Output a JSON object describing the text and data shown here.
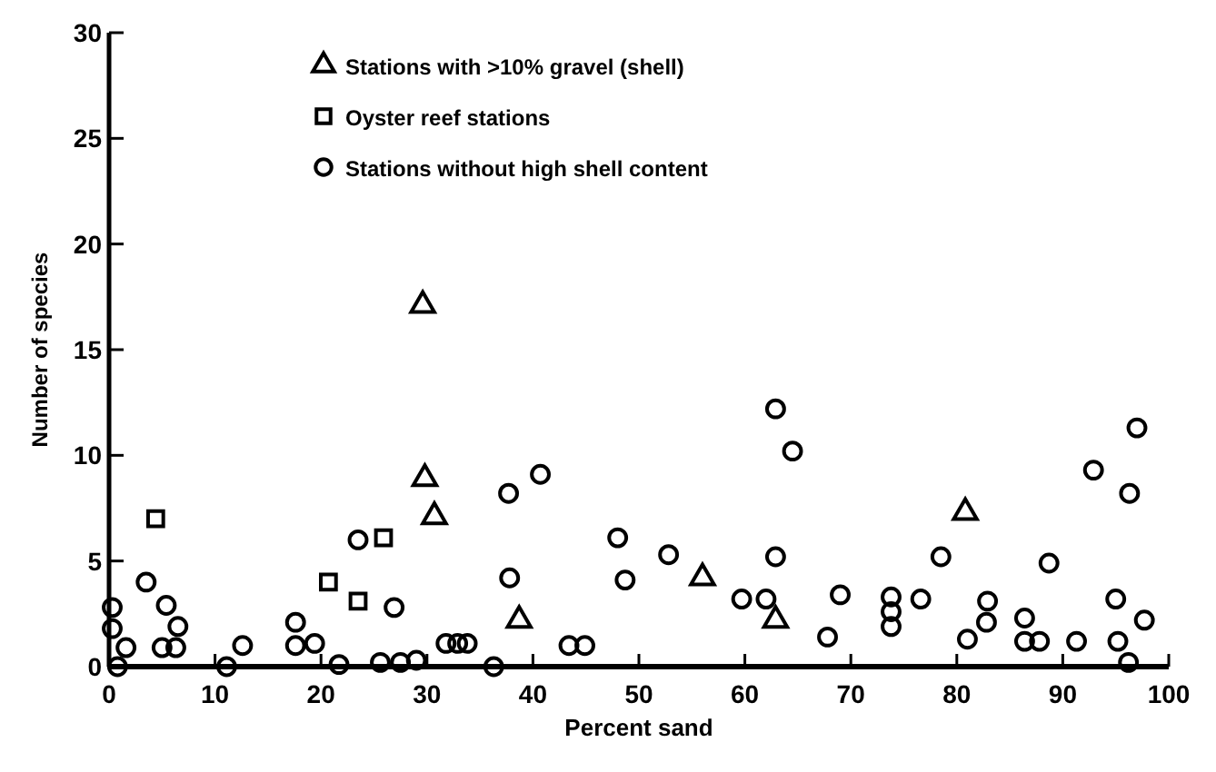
{
  "chart_data": {
    "type": "scatter",
    "xlabel": "Percent sand",
    "ylabel": "Number of species",
    "xlim": [
      0,
      100
    ],
    "ylim": [
      0,
      30
    ],
    "xticks": [
      0,
      10,
      20,
      30,
      40,
      50,
      60,
      70,
      80,
      90,
      100
    ],
    "yticks": [
      0,
      5,
      10,
      15,
      20,
      25,
      30
    ],
    "grid": false,
    "legend": "top",
    "series": [
      {
        "name": "Stations with >10% gravel (shell)",
        "color": "#000000",
        "marker": "triangle",
        "x": [
          29.6,
          29.8,
          30.7,
          38.7,
          56,
          62.9,
          80.8
        ],
        "values": [
          17.1,
          8.9,
          7.1,
          2.2,
          4.2,
          2.2,
          7.3
        ]
      },
      {
        "name": "Oyster reef stations",
        "color": "#000000",
        "marker": "square",
        "x": [
          4.4,
          20.7,
          23.5,
          25.9
        ],
        "values": [
          7,
          4,
          3.1,
          6.1
        ]
      },
      {
        "name": "Stations without high shell content",
        "color": "#000000",
        "marker": "circle",
        "x": [
          0.3,
          0.3,
          1.6,
          0.8,
          3.5,
          5.4,
          6.5,
          5,
          6.3,
          11.1,
          12.6,
          17.6,
          17.6,
          19.4,
          21.7,
          23.5,
          25.6,
          26.9,
          27.5,
          29,
          31.8,
          32.9,
          33.8,
          36.3,
          37.7,
          40.7,
          37.8,
          43.4,
          44.9,
          48,
          48.7,
          52.8,
          59.7,
          62,
          62.9,
          64.5,
          62.9,
          67.8,
          69,
          73.8,
          73.8,
          73.8,
          76.6,
          78.5,
          81,
          82.9,
          82.8,
          86.4,
          86.4,
          87.8,
          88.7,
          91.3,
          92.9,
          96.3,
          97,
          95,
          95.2,
          97.7,
          96.2
        ],
        "values": [
          2.8,
          1.8,
          0.9,
          0,
          4,
          2.9,
          1.9,
          0.9,
          0.9,
          0,
          1,
          2.1,
          1,
          1.1,
          0.1,
          6,
          0.2,
          2.8,
          0.2,
          0.3,
          1.1,
          1.1,
          1.1,
          0,
          8.2,
          9.1,
          4.2,
          1,
          1,
          6.1,
          4.1,
          5.3,
          3.2,
          3.2,
          12.2,
          10.2,
          5.2,
          1.4,
          3.4,
          3.3,
          2.6,
          1.9,
          3.2,
          5.2,
          1.3,
          3.1,
          2.1,
          2.3,
          1.2,
          1.2,
          4.9,
          1.2,
          9.3,
          8.2,
          11.3,
          3.2,
          1.2,
          2.2,
          0.2
        ]
      }
    ]
  }
}
